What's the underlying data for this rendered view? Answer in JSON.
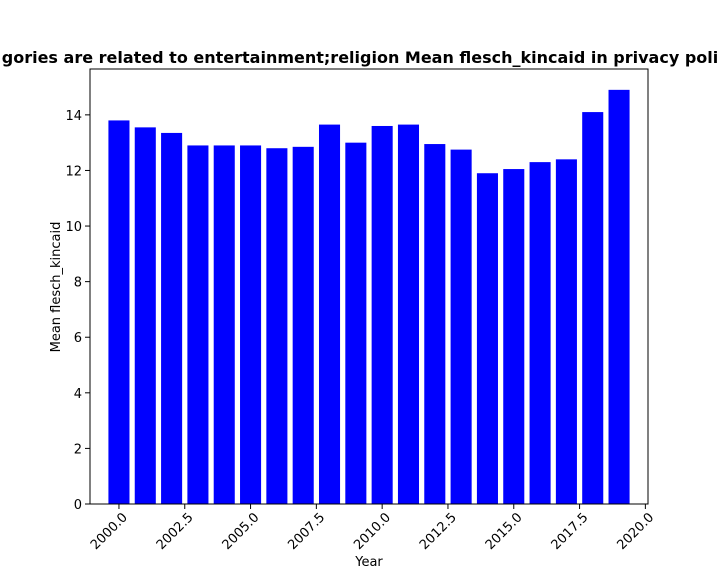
{
  "chart_data": {
    "type": "bar",
    "title": "gories are related to entertainment;religion Mean flesch_kincaid in privacy poli",
    "xlabel": "Year",
    "ylabel": "Mean flesch_kincaid",
    "x": [
      2000,
      2001,
      2002,
      2003,
      2004,
      2005,
      2006,
      2007,
      2008,
      2009,
      2010,
      2011,
      2012,
      2013,
      2014,
      2015,
      2016,
      2017,
      2018,
      2019
    ],
    "values": [
      13.8,
      13.55,
      13.35,
      12.9,
      12.9,
      12.9,
      12.8,
      12.85,
      13.65,
      13.0,
      13.6,
      13.65,
      12.95,
      12.75,
      11.9,
      12.05,
      12.3,
      12.4,
      14.1,
      14.9
    ],
    "xlim": [
      1998.9,
      2020.1
    ],
    "ylim": [
      0,
      15.65
    ],
    "xticks": [
      2000.0,
      2002.5,
      2005.0,
      2007.5,
      2010.0,
      2012.5,
      2015.0,
      2017.5,
      2020.0
    ],
    "xtick_labels": [
      "2000.0",
      "2002.5",
      "2005.0",
      "2007.5",
      "2010.0",
      "2012.5",
      "2015.0",
      "2017.5",
      "2020.0"
    ],
    "yticks": [
      0,
      2,
      4,
      6,
      8,
      10,
      12,
      14
    ],
    "ytick_labels": [
      "0",
      "2",
      "4",
      "6",
      "8",
      "10",
      "12",
      "14"
    ],
    "bar_color": "#0000ff",
    "grid": false,
    "legend": "none"
  }
}
